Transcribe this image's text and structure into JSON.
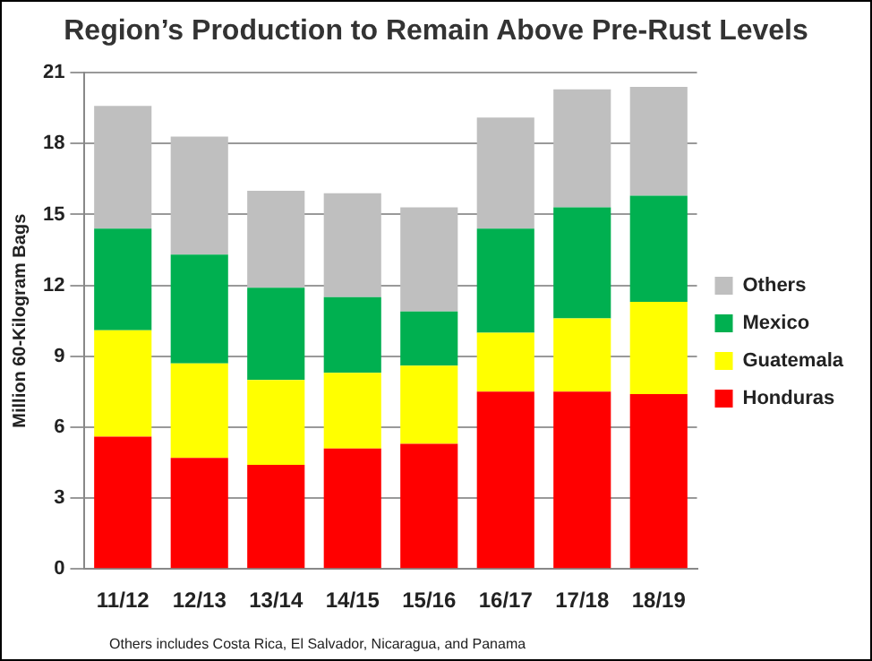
{
  "chart_data": {
    "type": "bar",
    "stacked": true,
    "title": "Region’s Production to Remain Above Pre-Rust Levels",
    "ylabel": "Million 60-Kilogram Bags",
    "categories": [
      "11/12",
      "12/13",
      "13/14",
      "14/15",
      "15/16",
      "16/17",
      "17/18",
      "18/19"
    ],
    "series": [
      {
        "name": "Honduras",
        "color": "#ff0000",
        "values": [
          5.6,
          4.7,
          4.4,
          5.1,
          5.3,
          7.5,
          7.5,
          7.4
        ]
      },
      {
        "name": "Guatemala",
        "color": "#ffff00",
        "values": [
          4.5,
          4.0,
          3.6,
          3.2,
          3.3,
          2.5,
          3.1,
          3.9
        ]
      },
      {
        "name": "Mexico",
        "color": "#00b050",
        "values": [
          4.3,
          4.6,
          3.9,
          3.2,
          2.3,
          4.4,
          4.7,
          4.5
        ]
      },
      {
        "name": "Others",
        "color": "#bfbfbf",
        "values": [
          5.2,
          5.0,
          4.1,
          4.4,
          4.4,
          4.7,
          5.0,
          4.6
        ]
      }
    ],
    "ylim": [
      0,
      21
    ],
    "yticks": [
      0,
      3,
      6,
      9,
      12,
      15,
      18,
      21
    ],
    "grid": "y",
    "legend": "right",
    "annotations": [
      "Others includes Costa Rica, El Salvador, Nicaragua, and Panama"
    ]
  }
}
